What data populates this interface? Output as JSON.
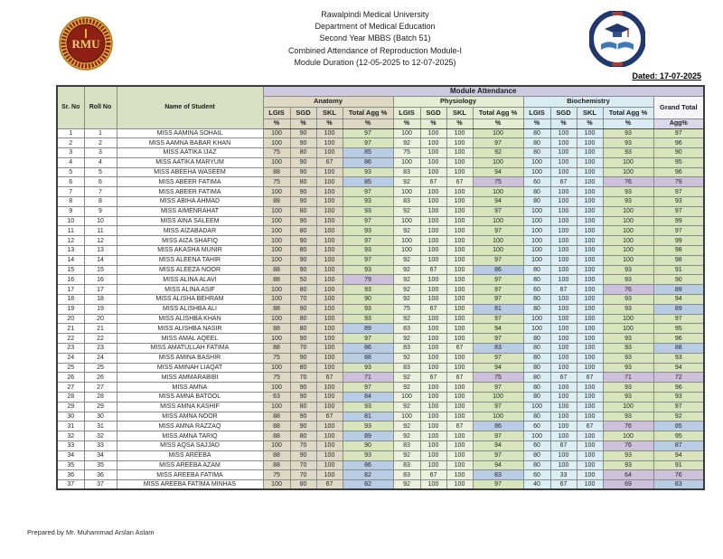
{
  "header": {
    "lines": [
      "Rawalpindi Medical University",
      "Department of Medical Education",
      "Second Year MBBS (Batch 51)",
      "Combined Attendance of Reproduction Module-I",
      "Module Duration (12-05-2025 to 12-07-2025)"
    ],
    "left_logo": "rmu-university-seal",
    "right_logo": "department-of-medical-education-seal"
  },
  "dated_label": "Dated: 17-07-2025",
  "footer": "Prepared by Mr. Muhammad Arslan Aslam",
  "table": {
    "top_header": "Module Attendance",
    "left_headers": [
      "Sr. No",
      "Roll No",
      "Name of Student"
    ],
    "sections": [
      {
        "name": "Anatomy",
        "color": "#ddd9c4"
      },
      {
        "name": "Physiology",
        "color": "#ebf1dd"
      },
      {
        "name": "Biochemistry",
        "color": "#daeef3"
      }
    ],
    "sub_columns": [
      "LGIS",
      "SGD",
      "SKL",
      "Total Agg %"
    ],
    "percent_symbol": "%",
    "grand_total_header": "Grand Total",
    "grand_total_sub": "Agg%",
    "conditional_colors": {
      "90_and_above": "#d8e4bc",
      "80_to_89": "#b8cce4",
      "below_80": "#ccc0da"
    },
    "rows": [
      {
        "sr": 1,
        "roll": 1,
        "name": "MISS AAMINA SOHAIL",
        "anatomy": [
          100,
          90,
          100,
          97
        ],
        "physiology": [
          100,
          100,
          100,
          100
        ],
        "biochemistry": [
          80,
          100,
          100,
          93
        ],
        "grand": 97
      },
      {
        "sr": 2,
        "roll": 2,
        "name": "MISS AAMNA BABAR KHAN",
        "anatomy": [
          100,
          90,
          100,
          97
        ],
        "physiology": [
          92,
          100,
          100,
          97
        ],
        "biochemistry": [
          80,
          100,
          100,
          93
        ],
        "grand": 96
      },
      {
        "sr": 3,
        "roll": 3,
        "name": "MISS AATIKA IJAZ",
        "anatomy": [
          75,
          80,
          100,
          85
        ],
        "physiology": [
          75,
          100,
          100,
          92
        ],
        "biochemistry": [
          80,
          100,
          100,
          93
        ],
        "grand": 90
      },
      {
        "sr": 4,
        "roll": 4,
        "name": "MISS AATIKA MARYUM",
        "anatomy": [
          100,
          90,
          67,
          86
        ],
        "physiology": [
          100,
          100,
          100,
          100
        ],
        "biochemistry": [
          100,
          100,
          100,
          100
        ],
        "grand": 95
      },
      {
        "sr": 5,
        "roll": 5,
        "name": "MISS ABEEHA WASEEM",
        "anatomy": [
          88,
          90,
          100,
          93
        ],
        "physiology": [
          83,
          100,
          100,
          94
        ],
        "biochemistry": [
          100,
          100,
          100,
          100
        ],
        "grand": 96
      },
      {
        "sr": 6,
        "roll": 6,
        "name": "MISS ABEER FATIMA",
        "anatomy": [
          75,
          80,
          100,
          85
        ],
        "physiology": [
          92,
          67,
          67,
          75
        ],
        "biochemistry": [
          60,
          67,
          100,
          76
        ],
        "grand": 79
      },
      {
        "sr": 7,
        "roll": 7,
        "name": "MISS ABEER FATIMA",
        "anatomy": [
          100,
          90,
          100,
          97
        ],
        "physiology": [
          100,
          100,
          100,
          100
        ],
        "biochemistry": [
          80,
          100,
          100,
          93
        ],
        "grand": 97
      },
      {
        "sr": 8,
        "roll": 8,
        "name": "MISS ABIHA AHMAD",
        "anatomy": [
          88,
          90,
          100,
          93
        ],
        "physiology": [
          83,
          100,
          100,
          94
        ],
        "biochemistry": [
          80,
          100,
          100,
          93
        ],
        "grand": 93
      },
      {
        "sr": 9,
        "roll": 9,
        "name": "MISS AIMENRAHAT",
        "anatomy": [
          100,
          80,
          100,
          93
        ],
        "physiology": [
          92,
          100,
          100,
          97
        ],
        "biochemistry": [
          100,
          100,
          100,
          100
        ],
        "grand": 97
      },
      {
        "sr": 10,
        "roll": 10,
        "name": "MISS AINA SALEEM",
        "anatomy": [
          100,
          90,
          100,
          97
        ],
        "physiology": [
          100,
          100,
          100,
          100
        ],
        "biochemistry": [
          100,
          100,
          100,
          100
        ],
        "grand": 99
      },
      {
        "sr": 11,
        "roll": 11,
        "name": "MISS AIZABADAR",
        "anatomy": [
          100,
          80,
          100,
          93
        ],
        "physiology": [
          92,
          100,
          100,
          97
        ],
        "biochemistry": [
          100,
          100,
          100,
          100
        ],
        "grand": 97
      },
      {
        "sr": 12,
        "roll": 12,
        "name": "MISS AIZA SHAFIQ",
        "anatomy": [
          100,
          90,
          100,
          97
        ],
        "physiology": [
          100,
          100,
          100,
          100
        ],
        "biochemistry": [
          100,
          100,
          100,
          100
        ],
        "grand": 99
      },
      {
        "sr": 13,
        "roll": 13,
        "name": "MISS AKASHA MUNIR",
        "anatomy": [
          100,
          80,
          100,
          93
        ],
        "physiology": [
          100,
          100,
          100,
          100
        ],
        "biochemistry": [
          100,
          100,
          100,
          100
        ],
        "grand": 98
      },
      {
        "sr": 14,
        "roll": 14,
        "name": "MISS ALEENA TAHIR",
        "anatomy": [
          100,
          90,
          100,
          97
        ],
        "physiology": [
          92,
          100,
          100,
          97
        ],
        "biochemistry": [
          100,
          100,
          100,
          100
        ],
        "grand": 98
      },
      {
        "sr": 15,
        "roll": 15,
        "name": "MISS ALEEZA NOOR",
        "anatomy": [
          88,
          90,
          100,
          93
        ],
        "physiology": [
          92,
          67,
          100,
          86
        ],
        "biochemistry": [
          80,
          100,
          100,
          93
        ],
        "grand": 91
      },
      {
        "sr": 16,
        "roll": 16,
        "name": "MISS ALINA ALAVI",
        "anatomy": [
          88,
          50,
          100,
          79
        ],
        "physiology": [
          92,
          100,
          100,
          97
        ],
        "biochemistry": [
          80,
          100,
          100,
          93
        ],
        "grand": 90
      },
      {
        "sr": 17,
        "roll": 17,
        "name": "MISS ALINA ASIF",
        "anatomy": [
          100,
          80,
          100,
          93
        ],
        "physiology": [
          92,
          100,
          100,
          97
        ],
        "biochemistry": [
          60,
          67,
          100,
          76
        ],
        "grand": 89
      },
      {
        "sr": 18,
        "roll": 18,
        "name": "MISS ALISHA BEHRAM",
        "anatomy": [
          100,
          70,
          100,
          90
        ],
        "physiology": [
          92,
          100,
          100,
          97
        ],
        "biochemistry": [
          80,
          100,
          100,
          93
        ],
        "grand": 94
      },
      {
        "sr": 19,
        "roll": 19,
        "name": "MISS ALISHBA ALI",
        "anatomy": [
          88,
          90,
          100,
          93
        ],
        "physiology": [
          75,
          67,
          100,
          81
        ],
        "biochemistry": [
          80,
          100,
          100,
          93
        ],
        "grand": 89
      },
      {
        "sr": 20,
        "roll": 20,
        "name": "MISS ALISHBA KHAN",
        "anatomy": [
          100,
          80,
          100,
          93
        ],
        "physiology": [
          92,
          100,
          100,
          97
        ],
        "biochemistry": [
          100,
          100,
          100,
          100
        ],
        "grand": 97
      },
      {
        "sr": 21,
        "roll": 21,
        "name": "MISS ALISHBA NASIR",
        "anatomy": [
          88,
          80,
          100,
          89
        ],
        "physiology": [
          83,
          100,
          100,
          94
        ],
        "biochemistry": [
          100,
          100,
          100,
          100
        ],
        "grand": 95
      },
      {
        "sr": 22,
        "roll": 22,
        "name": "MISS AMAL AQEEL",
        "anatomy": [
          100,
          90,
          100,
          97
        ],
        "physiology": [
          92,
          100,
          100,
          97
        ],
        "biochemistry": [
          80,
          100,
          100,
          93
        ],
        "grand": 96
      },
      {
        "sr": 23,
        "roll": 23,
        "name": "MISS AMATULLAH FATIMA",
        "anatomy": [
          88,
          70,
          100,
          86
        ],
        "physiology": [
          83,
          100,
          67,
          83
        ],
        "biochemistry": [
          80,
          100,
          100,
          93
        ],
        "grand": 88
      },
      {
        "sr": 24,
        "roll": 24,
        "name": "MISS AMINA BASHIR",
        "anatomy": [
          75,
          90,
          100,
          88
        ],
        "physiology": [
          92,
          100,
          100,
          97
        ],
        "biochemistry": [
          80,
          100,
          100,
          93
        ],
        "grand": 93
      },
      {
        "sr": 25,
        "roll": 25,
        "name": "MISS AMINAH LIAQAT",
        "anatomy": [
          100,
          80,
          100,
          93
        ],
        "physiology": [
          83,
          100,
          100,
          94
        ],
        "biochemistry": [
          80,
          100,
          100,
          93
        ],
        "grand": 94
      },
      {
        "sr": 26,
        "roll": 26,
        "name": "MISS AMMARABIBI",
        "anatomy": [
          75,
          70,
          67,
          71
        ],
        "physiology": [
          92,
          67,
          67,
          75
        ],
        "biochemistry": [
          80,
          67,
          67,
          71
        ],
        "grand": 72
      },
      {
        "sr": 27,
        "roll": 27,
        "name": "MISS AMNA",
        "anatomy": [
          100,
          90,
          100,
          97
        ],
        "physiology": [
          92,
          100,
          100,
          97
        ],
        "biochemistry": [
          80,
          100,
          100,
          93
        ],
        "grand": 96
      },
      {
        "sr": 28,
        "roll": 28,
        "name": "MISS AMNA BATOOL",
        "anatomy": [
          63,
          90,
          100,
          84
        ],
        "physiology": [
          100,
          100,
          100,
          100
        ],
        "biochemistry": [
          80,
          100,
          100,
          93
        ],
        "grand": 93
      },
      {
        "sr": 29,
        "roll": 29,
        "name": "MISS AMNA KASHIF",
        "anatomy": [
          100,
          80,
          100,
          93
        ],
        "physiology": [
          92,
          100,
          100,
          97
        ],
        "biochemistry": [
          100,
          100,
          100,
          100
        ],
        "grand": 97
      },
      {
        "sr": 30,
        "roll": 30,
        "name": "MISS AMNA NOOR",
        "anatomy": [
          88,
          90,
          67,
          81
        ],
        "physiology": [
          100,
          100,
          100,
          100
        ],
        "biochemistry": [
          80,
          100,
          100,
          93
        ],
        "grand": 92
      },
      {
        "sr": 31,
        "roll": 31,
        "name": "MISS AMNA RAZZAQ",
        "anatomy": [
          88,
          90,
          100,
          93
        ],
        "physiology": [
          92,
          100,
          67,
          86
        ],
        "biochemistry": [
          60,
          100,
          67,
          76
        ],
        "grand": 85
      },
      {
        "sr": 32,
        "roll": 32,
        "name": "MISS AMNA TARIQ",
        "anatomy": [
          88,
          80,
          100,
          89
        ],
        "physiology": [
          92,
          100,
          100,
          97
        ],
        "biochemistry": [
          100,
          100,
          100,
          100
        ],
        "grand": 95
      },
      {
        "sr": 33,
        "roll": 33,
        "name": "MISS AQSA SAJJAD",
        "anatomy": [
          100,
          70,
          100,
          90
        ],
        "physiology": [
          83,
          100,
          100,
          94
        ],
        "biochemistry": [
          60,
          67,
          100,
          76
        ],
        "grand": 87
      },
      {
        "sr": 34,
        "roll": 34,
        "name": "MISS AREEBA",
        "anatomy": [
          88,
          90,
          100,
          93
        ],
        "physiology": [
          92,
          100,
          100,
          97
        ],
        "biochemistry": [
          80,
          100,
          100,
          93
        ],
        "grand": 94
      },
      {
        "sr": 35,
        "roll": 35,
        "name": "MISS AREEBA AZAM",
        "anatomy": [
          88,
          70,
          100,
          86
        ],
        "physiology": [
          83,
          100,
          100,
          94
        ],
        "biochemistry": [
          80,
          100,
          100,
          93
        ],
        "grand": 91
      },
      {
        "sr": 36,
        "roll": 36,
        "name": "MISS AREEBA FATIMA",
        "anatomy": [
          75,
          70,
          100,
          82
        ],
        "physiology": [
          83,
          67,
          100,
          83
        ],
        "biochemistry": [
          60,
          33,
          100,
          64
        ],
        "grand": 76
      },
      {
        "sr": 37,
        "roll": 37,
        "name": "MISS AREEBA FATIMA MINHAS",
        "anatomy": [
          100,
          80,
          67,
          82
        ],
        "physiology": [
          92,
          100,
          100,
          97
        ],
        "biochemistry": [
          40,
          67,
          100,
          69
        ],
        "grand": 83
      }
    ]
  }
}
